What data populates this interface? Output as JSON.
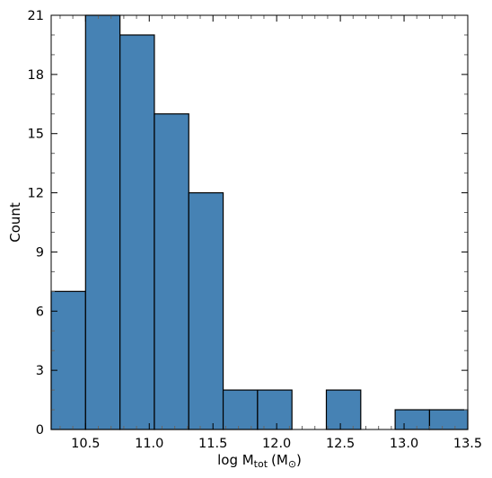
{
  "chart_data": {
    "type": "bar",
    "subtype": "histogram",
    "title": "",
    "xlabel": {
      "main": "log M",
      "sub": "tot",
      "unit": "(M",
      "sun": "⊙",
      "close": ")"
    },
    "ylabel": "Count",
    "bin_edges": [
      10.23,
      10.5,
      10.77,
      11.04,
      11.31,
      11.58,
      11.85,
      12.12,
      12.39,
      12.66,
      12.93,
      13.2,
      13.5
    ],
    "values": [
      7,
      21,
      20,
      16,
      12,
      2,
      2,
      0,
      2,
      0,
      1,
      1
    ],
    "xlim": [
      10.23,
      13.5
    ],
    "ylim": [
      0,
      21
    ],
    "xticks": [
      "10.5",
      "11.0",
      "11.5",
      "12.0",
      "12.5",
      "13.0",
      "13.5"
    ],
    "yticks": [
      "0",
      "3",
      "6",
      "9",
      "12",
      "15",
      "18",
      "21"
    ],
    "grid": false,
    "bar_color": "#4682b4",
    "edge_color": "#000000"
  }
}
